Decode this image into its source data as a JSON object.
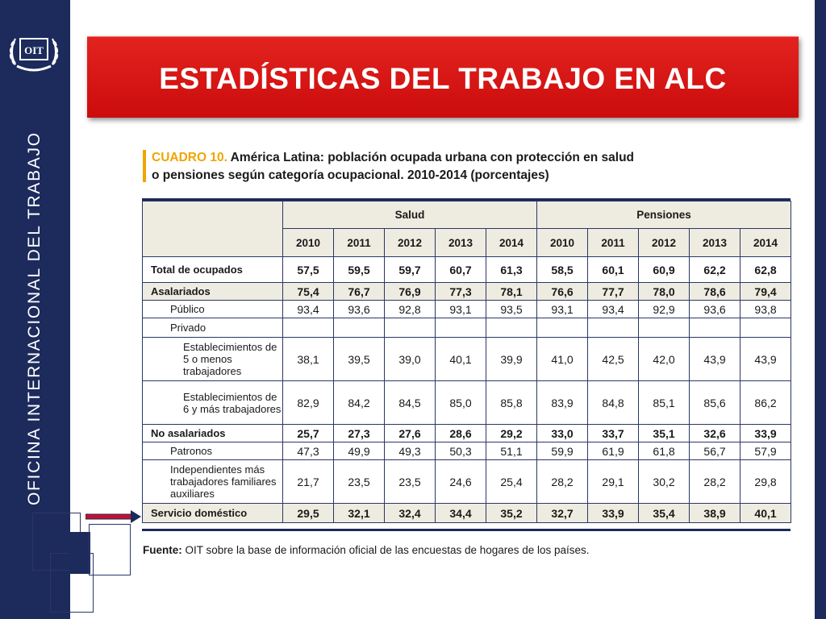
{
  "sidebar": {
    "org_name": "OFICINA INTERNACIONAL DEL TRABAJO",
    "logo_text": "OIT"
  },
  "banner": {
    "title": "ESTADÍSTICAS DEL TRABAJO EN ALC"
  },
  "caption": {
    "label": "CUADRO 10.",
    "line1": "América Latina: población ocupada urbana con protección en salud",
    "line2": "o pensiones según categoría ocupacional. 2010-2014 (porcentajes)"
  },
  "table": {
    "groups": [
      "Salud",
      "Pensiones"
    ],
    "years": [
      "2010",
      "2011",
      "2012",
      "2013",
      "2014",
      "2010",
      "2011",
      "2012",
      "2013",
      "2014"
    ],
    "rows": [
      {
        "label": "Total de ocupados",
        "values": [
          "57,5",
          "59,5",
          "59,7",
          "60,7",
          "61,3",
          "58,5",
          "60,1",
          "60,9",
          "62,2",
          "62,8"
        ]
      },
      {
        "label": "Asalariados",
        "values": [
          "75,4",
          "76,7",
          "76,9",
          "77,3",
          "78,1",
          "76,6",
          "77,7",
          "78,0",
          "78,6",
          "79,4"
        ]
      },
      {
        "label": "Público",
        "values": [
          "93,4",
          "93,6",
          "92,8",
          "93,1",
          "93,5",
          "93,1",
          "93,4",
          "92,9",
          "93,6",
          "93,8"
        ]
      },
      {
        "label": "Privado",
        "values": [
          "",
          "",
          "",
          "",
          "",
          "",
          "",
          "",
          "",
          ""
        ]
      },
      {
        "label": "Establecimientos de 5 o menos trabajadores",
        "values": [
          "38,1",
          "39,5",
          "39,0",
          "40,1",
          "39,9",
          "41,0",
          "42,5",
          "42,0",
          "43,9",
          "43,9"
        ]
      },
      {
        "label": "Establecimientos de 6 y más trabajadores",
        "values": [
          "82,9",
          "84,2",
          "84,5",
          "85,0",
          "85,8",
          "83,9",
          "84,8",
          "85,1",
          "85,6",
          "86,2"
        ]
      },
      {
        "label": "No asalariados",
        "values": [
          "25,7",
          "27,3",
          "27,6",
          "28,6",
          "29,2",
          "33,0",
          "33,7",
          "35,1",
          "32,6",
          "33,9"
        ]
      },
      {
        "label": "Patronos",
        "values": [
          "47,3",
          "49,9",
          "49,3",
          "50,3",
          "51,1",
          "59,9",
          "61,9",
          "61,8",
          "56,7",
          "57,9"
        ]
      },
      {
        "label": "Independientes más trabajadores familiares auxiliares",
        "values": [
          "21,7",
          "23,5",
          "23,5",
          "24,6",
          "25,4",
          "28,2",
          "29,1",
          "30,2",
          "28,2",
          "29,8"
        ]
      },
      {
        "label": "Servicio doméstico",
        "values": [
          "29,5",
          "32,1",
          "32,4",
          "34,4",
          "35,2",
          "32,7",
          "33,9",
          "35,4",
          "38,9",
          "40,1"
        ]
      }
    ]
  },
  "source": {
    "label": "Fuente:",
    "text": "OIT sobre la base de información oficial de las encuestas de hogares de los países."
  },
  "colors": {
    "sidebar": "#1c2a5c",
    "banner": "#d8161a",
    "accent": "#f0a500",
    "header_fill": "#eeebe0",
    "arrow": "#c8102e"
  }
}
